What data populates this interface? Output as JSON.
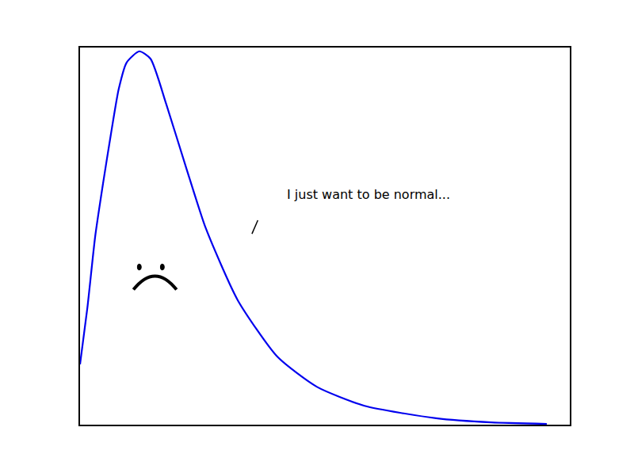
{
  "chart_data": {
    "type": "line",
    "x": [
      0,
      0.15,
      0.31,
      0.47,
      0.63,
      0.79,
      0.95,
      1.21,
      1.44,
      1.76,
      2.17,
      2.57,
      3.22,
      4.03,
      4.84,
      5.81,
      7.27,
      8.4,
      9.53
    ],
    "values": [
      0.16,
      0.31,
      0.5,
      0.64,
      0.77,
      0.89,
      0.96,
      0.99,
      0.97,
      0.85,
      0.68,
      0.52,
      0.33,
      0.18,
      0.1,
      0.05,
      0.017,
      0.006,
      0.002
    ],
    "color": "#0000ee",
    "xlim": [
      0,
      10
    ],
    "ylim": [
      0,
      1
    ],
    "tick_labels": false,
    "grid": false,
    "annotations": [
      {
        "text": "I just want to be normal...",
        "x": 5.89,
        "y": 0.61
      }
    ]
  }
}
